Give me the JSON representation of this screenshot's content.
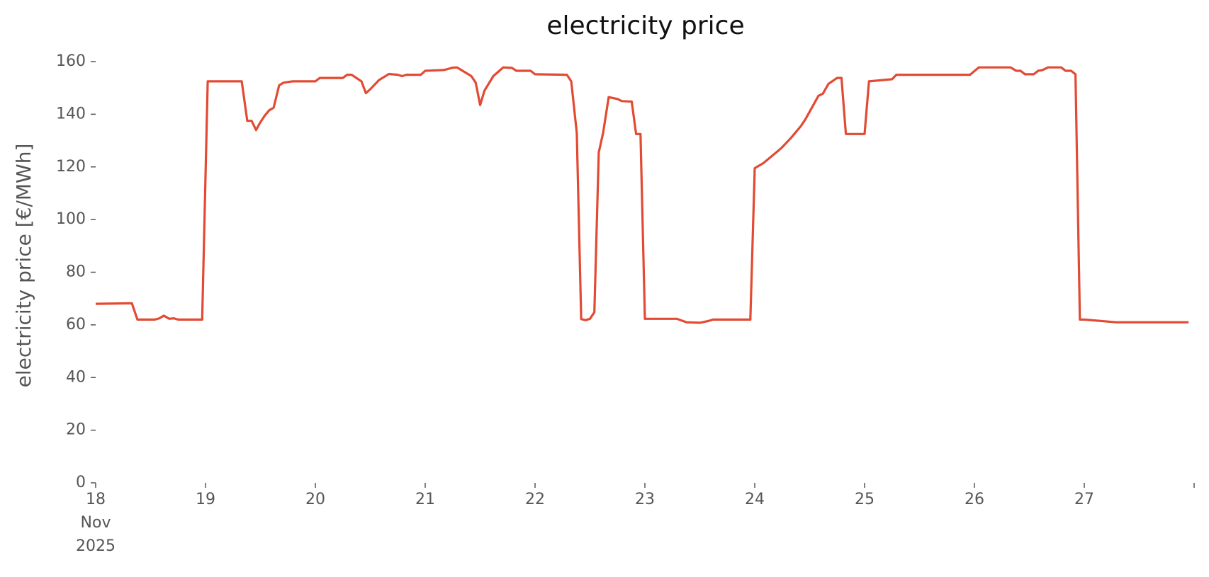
{
  "chart_data": {
    "type": "line",
    "title": "electricity price",
    "ylabel": "electricity price [€/MWh]",
    "x_sublabels": [
      "Nov",
      "2025"
    ],
    "xlim": [
      18,
      28
    ],
    "xticks": [
      18,
      19,
      20,
      21,
      22,
      23,
      24,
      25,
      26,
      27,
      {
        "value": 28,
        "label": null
      }
    ],
    "ylim": [
      0,
      160
    ],
    "yticks": [
      0,
      20,
      40,
      60,
      80,
      100,
      120,
      140,
      160
    ],
    "grid": false,
    "series": [
      {
        "name": "electricity price",
        "color": "#e24a33",
        "x": [
          18.0,
          18.33,
          18.38,
          18.42,
          18.54,
          18.58,
          18.62,
          18.67,
          18.71,
          18.75,
          18.97,
          19.02,
          19.33,
          19.38,
          19.42,
          19.46,
          19.5,
          19.54,
          19.58,
          19.62,
          19.67,
          19.71,
          19.79,
          20.0,
          20.04,
          20.25,
          20.29,
          20.33,
          20.42,
          20.46,
          20.5,
          20.58,
          20.67,
          20.75,
          20.79,
          20.83,
          20.96,
          21.0,
          21.17,
          21.25,
          21.29,
          21.42,
          21.46,
          21.5,
          21.54,
          21.62,
          21.71,
          21.79,
          21.83,
          21.96,
          22.0,
          22.29,
          22.33,
          22.38,
          22.42,
          22.46,
          22.5,
          22.54,
          22.58,
          22.62,
          22.67,
          22.75,
          22.79,
          22.88,
          22.92,
          22.96,
          23.0,
          23.29,
          23.38,
          23.5,
          23.58,
          23.62,
          23.96,
          24.0,
          24.08,
          24.21,
          24.25,
          24.33,
          24.42,
          24.46,
          24.5,
          24.58,
          24.62,
          24.67,
          24.75,
          24.79,
          24.83,
          24.96,
          25.0,
          25.04,
          25.25,
          25.29,
          25.96,
          26.04,
          26.33,
          26.38,
          26.42,
          26.46,
          26.54,
          26.58,
          26.62,
          26.67,
          26.79,
          26.83,
          26.88,
          26.92,
          26.96,
          27.0,
          27.29,
          27.38,
          27.95
        ],
        "values": [
          68,
          68.2,
          62,
          62,
          62,
          62.5,
          63.5,
          62.3,
          62.5,
          62,
          62,
          152.5,
          152.5,
          137.5,
          137.5,
          134,
          137,
          139.5,
          141.5,
          142.5,
          151,
          152,
          152.5,
          152.5,
          153.8,
          153.8,
          155,
          155,
          152.5,
          148,
          149.5,
          153,
          155.3,
          155,
          154.5,
          155,
          155,
          156.5,
          156.8,
          157.7,
          157.8,
          154.5,
          152,
          143.5,
          149,
          154.5,
          157.8,
          157.6,
          156.5,
          156.5,
          155.2,
          155,
          152.5,
          132.8,
          62.2,
          61.8,
          62.3,
          64.8,
          125.5,
          133,
          146.5,
          145.8,
          145,
          144.8,
          132.5,
          132.5,
          62.3,
          62.3,
          61,
          60.8,
          61.5,
          62,
          62,
          119.5,
          121.5,
          126,
          127.5,
          131,
          135.5,
          138,
          141,
          147,
          147.8,
          151.5,
          153.8,
          153.8,
          132.5,
          132.5,
          132.5,
          152.5,
          153.3,
          155,
          155,
          157.8,
          157.8,
          156.5,
          156.5,
          155.2,
          155.2,
          156.5,
          156.8,
          157.8,
          157.8,
          156.5,
          156.5,
          155.2,
          62,
          62,
          61,
          61,
          61
        ]
      }
    ]
  }
}
